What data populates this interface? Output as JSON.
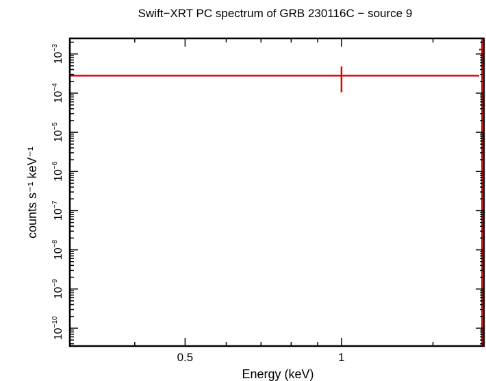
{
  "chart_data": {
    "type": "scatter",
    "title": "Swift−XRT PC spectrum of GRB 230116C − source 9",
    "xlabel": "Energy (keV)",
    "ylabel": "counts s⁻¹ keV⁻¹",
    "x_scale": "log",
    "y_scale": "log",
    "xlim": [
      0.3,
      1.88
    ],
    "ylim": [
      3.5e-11,
      0.0025
    ],
    "x_ticks": [
      {
        "value": 0.5,
        "label": "0.5"
      },
      {
        "value": 1,
        "label": "1"
      }
    ],
    "y_ticks": [
      {
        "value": 1e-10,
        "base": "10",
        "exp": "−10"
      },
      {
        "value": 1e-09,
        "base": "10",
        "exp": "−9"
      },
      {
        "value": 1e-08,
        "base": "10",
        "exp": "−8"
      },
      {
        "value": 1e-07,
        "base": "10",
        "exp": "−7"
      },
      {
        "value": 1e-06,
        "base": "10",
        "exp": "−6"
      },
      {
        "value": 1e-05,
        "base": "10",
        "exp": "−5"
      },
      {
        "value": 0.0001,
        "base": "10",
        "exp": "−4"
      },
      {
        "value": 0.001,
        "base": "10",
        "exp": "−3"
      }
    ],
    "grid": false,
    "series": [
      {
        "color": "#e00000",
        "points": [
          {
            "x": 1.0,
            "xlo": 0.3,
            "xhi": 1.84,
            "y": 0.00028,
            "ylo": 0.000105,
            "yhi": 0.00048
          },
          {
            "x": 1.865,
            "xlo": 1.84,
            "xhi": 1.89,
            "y": 0.0013,
            "ylo": 3.5e-11,
            "yhi": 0.0025
          }
        ]
      }
    ]
  }
}
